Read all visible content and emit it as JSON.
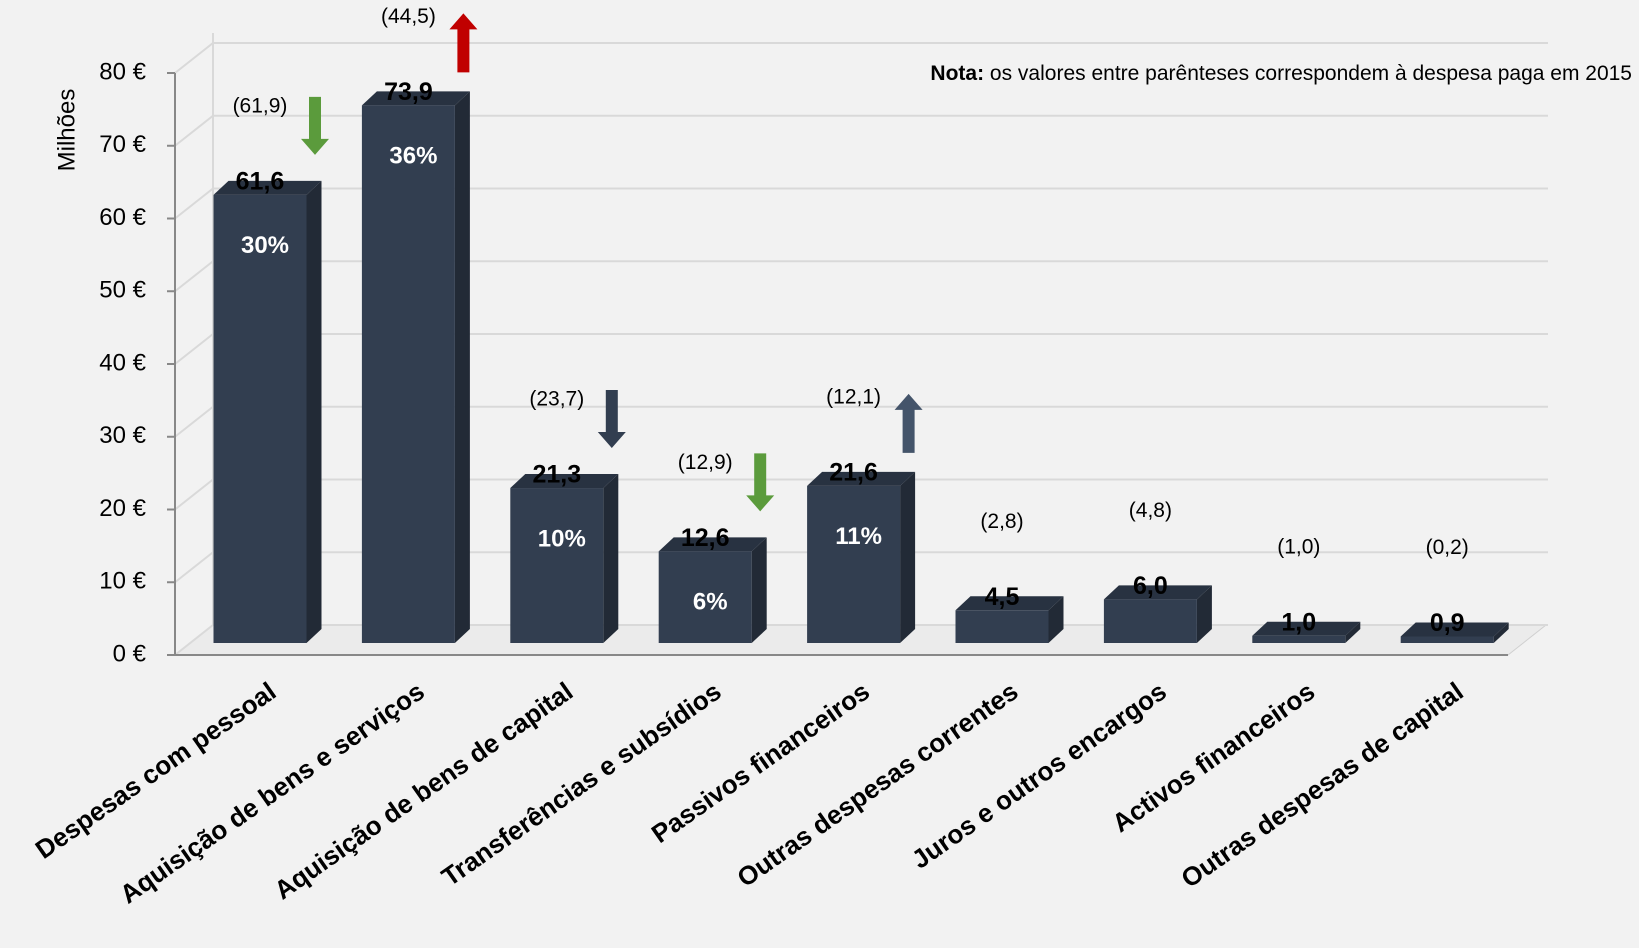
{
  "chart_data": {
    "type": "bar3d",
    "y_label": "Milhões",
    "note_label": "Nota:",
    "note": "os valores entre parênteses correspondem à despesa paga em 2015",
    "categories": [
      "Despesas com pessoal",
      "Aquisição de bens e serviços",
      "Aquisição de bens de capital",
      "Transferências e subsídios",
      "Passivos financeiros",
      "Outras despesas correntes",
      "Juros e outros encargos",
      "Activos financeiros",
      "Outras despesas de capital"
    ],
    "values": [
      61.6,
      73.9,
      21.3,
      12.6,
      21.6,
      4.5,
      6.0,
      1.0,
      0.9
    ],
    "value_labels": [
      "61,6",
      "73,9",
      "21,3",
      "12,6",
      "21,6",
      "4,5",
      "6,0",
      "1,0",
      "0,9"
    ],
    "shares": [
      30,
      36,
      10,
      6,
      11,
      null,
      null,
      null,
      null
    ],
    "share_labels": [
      "30%",
      "36%",
      "10%",
      "6%",
      "11%",
      null,
      null,
      null,
      null
    ],
    "previous": [
      61.9,
      44.5,
      23.7,
      12.9,
      12.1,
      2.8,
      4.8,
      1.0,
      0.2
    ],
    "previous_labels": [
      "(61,9)",
      "(44,5)",
      "(23,7)",
      "(12,9)",
      "(12,1)",
      "(2,8)",
      "(4,8)",
      "(1,0)",
      "(0,2)"
    ],
    "arrows": [
      {
        "direction": "down",
        "color": "#5b9b3c"
      },
      {
        "direction": "up",
        "color": "#c00000"
      },
      {
        "direction": "down",
        "color": "#323e50"
      },
      {
        "direction": "down",
        "color": "#5b9b3c"
      },
      {
        "direction": "up",
        "color": "#44546a"
      },
      null,
      null,
      null,
      null
    ],
    "color": "#323e50",
    "ylim": [
      0,
      80
    ],
    "yticks": [
      {
        "value": 0,
        "label": "0 €"
      },
      {
        "value": 10,
        "label": "10 €"
      },
      {
        "value": 20,
        "label": "20 €"
      },
      {
        "value": 30,
        "label": "30 €"
      },
      {
        "value": 40,
        "label": "40 €"
      },
      {
        "value": 50,
        "label": "50 €"
      },
      {
        "value": 60,
        "label": "60 €"
      },
      {
        "value": 70,
        "label": "70 €"
      },
      {
        "value": 80,
        "label": "80 €"
      }
    ],
    "grid": true
  }
}
